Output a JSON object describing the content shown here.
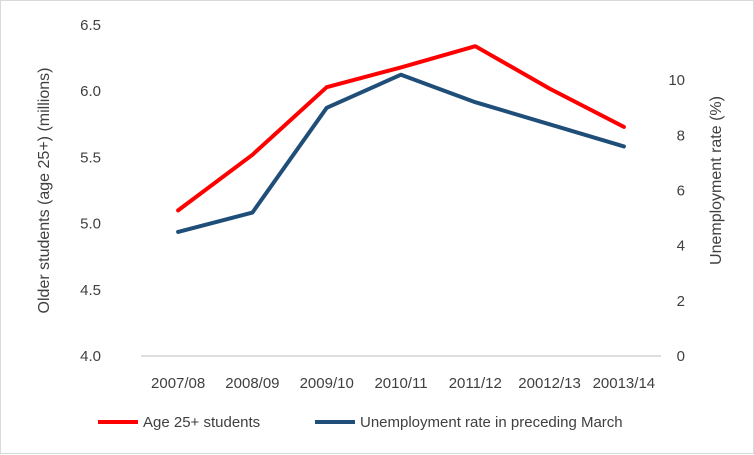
{
  "chart_data": {
    "type": "line",
    "categories": [
      "2007/08",
      "2008/09",
      "2009/10",
      "2010/11",
      "2011/12",
      "20012/13",
      "20013/14"
    ],
    "series": [
      {
        "name": "Age 25+ students",
        "axis": "left",
        "color": "#ff0000",
        "values": [
          5.1,
          5.52,
          6.03,
          6.18,
          6.34,
          6.02,
          5.73
        ]
      },
      {
        "name": "Unemployment rate in preceding March",
        "axis": "right",
        "color": "#1f4e79",
        "values": [
          4.5,
          5.2,
          9.0,
          10.2,
          9.2,
          8.4,
          7.6
        ]
      }
    ],
    "y_left": {
      "label": "Older students  (age 25+) (millions)",
      "range": [
        4.0,
        6.5
      ],
      "ticks": [
        "4.0",
        "4.5",
        "5.0",
        "5.5",
        "6.0",
        "6.5"
      ]
    },
    "y_right": {
      "label": "Unemployment rate (%)",
      "range": [
        0,
        12
      ],
      "ticks": [
        "0",
        "2",
        "4",
        "6",
        "8",
        "10"
      ]
    },
    "grid": false,
    "legend_position": "bottom"
  }
}
